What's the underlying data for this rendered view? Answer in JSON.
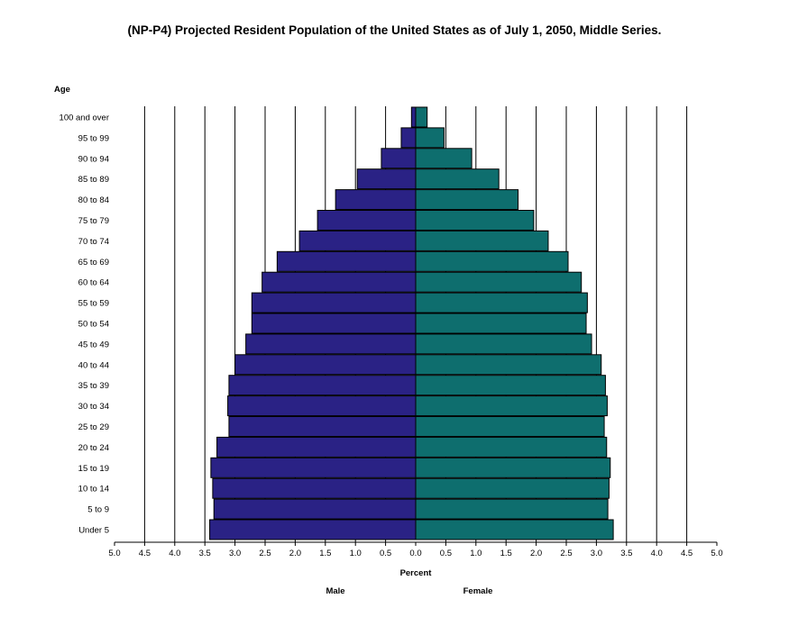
{
  "title": "(NP-P4)  Projected Resident Population of the United States as of July 1, 2050, Middle Series.",
  "chart_data": {
    "type": "bar",
    "orientation": "horizontal",
    "subtype": "population-pyramid",
    "title": "(NP-P4)  Projected Resident Population of the United States as of July 1, 2050, Middle Series.",
    "ylabel": "Age",
    "xlabel": "Percent",
    "side_labels": {
      "left": "Male",
      "right": "Female"
    },
    "xlim": [
      -5.0,
      5.0
    ],
    "x_tick_labels": [
      "5.0",
      "4.5",
      "4.0",
      "3.5",
      "3.0",
      "2.5",
      "2.0",
      "1.5",
      "1.0",
      "0.5",
      "0.0",
      "0.5",
      "1.0",
      "1.5",
      "2.0",
      "2.5",
      "3.0",
      "3.5",
      "4.0",
      "4.5",
      "5.0"
    ],
    "x_tick_values": [
      -5.0,
      -4.5,
      -4.0,
      -3.5,
      -3.0,
      -2.5,
      -2.0,
      -1.5,
      -1.0,
      -0.5,
      0.0,
      0.5,
      1.0,
      1.5,
      2.0,
      2.5,
      3.0,
      3.5,
      4.0,
      4.5,
      5.0
    ],
    "grid": "vertical lines at each 0.5",
    "categories": [
      "100 and over",
      "95 to 99",
      "90 to 94",
      "85 to 89",
      "80 to 84",
      "75 to 79",
      "70 to 74",
      "65 to 69",
      "60 to 64",
      "55 to 59",
      "50 to 54",
      "45 to 49",
      "40 to 44",
      "35 to 39",
      "30 to 34",
      "25 to 29",
      "20 to 24",
      "15 to 19",
      "10 to 14",
      "5 to 9",
      "Under 5"
    ],
    "series": [
      {
        "name": "Male",
        "color": "#2a2285",
        "values": [
          0.07,
          0.24,
          0.57,
          0.97,
          1.33,
          1.63,
          1.93,
          2.3,
          2.55,
          2.72,
          2.72,
          2.82,
          3.0,
          3.1,
          3.12,
          3.1,
          3.3,
          3.4,
          3.37,
          3.35,
          3.42
        ]
      },
      {
        "name": "Female",
        "color": "#0e6e6e",
        "values": [
          0.19,
          0.47,
          0.93,
          1.38,
          1.7,
          1.96,
          2.2,
          2.53,
          2.75,
          2.85,
          2.83,
          2.92,
          3.08,
          3.15,
          3.18,
          3.13,
          3.17,
          3.23,
          3.21,
          3.19,
          3.28
        ]
      }
    ]
  }
}
